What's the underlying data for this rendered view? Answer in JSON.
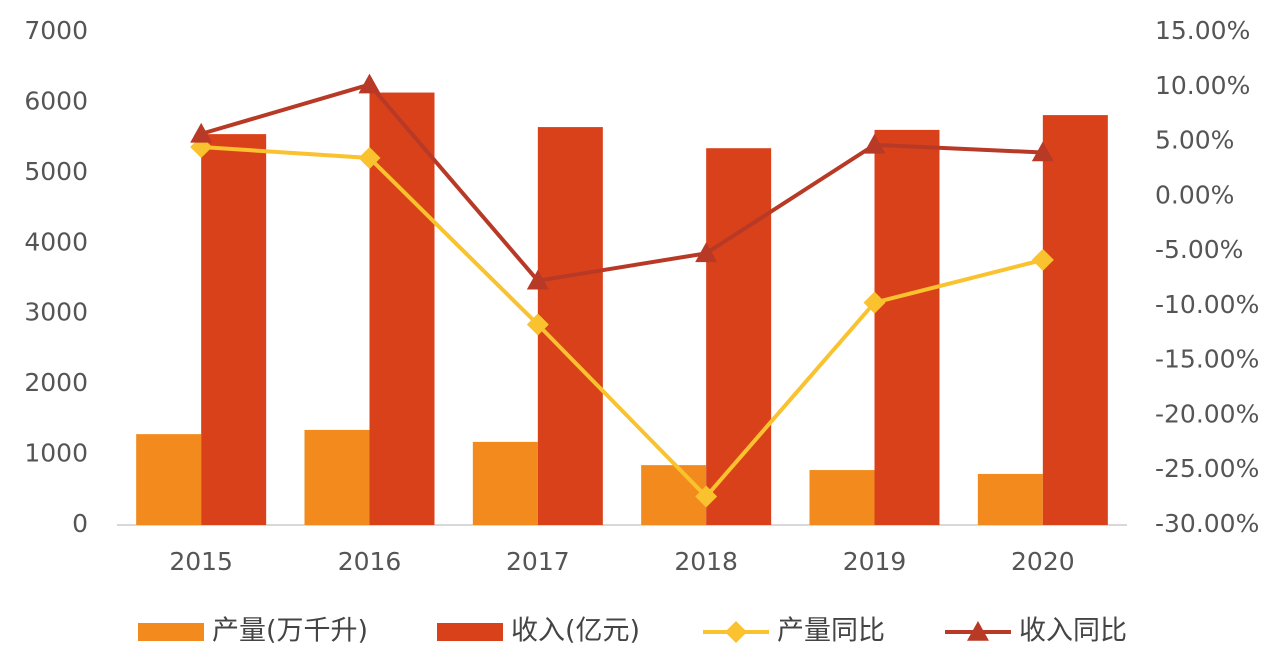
{
  "chart_data": {
    "type": "bar",
    "categories": [
      "2015",
      "2016",
      "2017",
      "2018",
      "2019",
      "2020"
    ],
    "series": [
      {
        "name": "产量(万千升)",
        "type": "bar",
        "color": "#f28a1e",
        "values": [
          1290,
          1350,
          1180,
          850,
          780,
          725
        ]
      },
      {
        "name": "收入(亿元)",
        "type": "bar",
        "color": "#d9411b",
        "values": [
          5550,
          6140,
          5650,
          5350,
          5610,
          5820
        ]
      },
      {
        "name": "产量同比",
        "type": "line",
        "marker": "diamond",
        "axis": "y2",
        "color": "#f9c22e",
        "values": [
          4.5,
          3.5,
          -11.7,
          -27.4,
          -9.7,
          -5.8
        ]
      },
      {
        "name": "收入同比",
        "type": "line",
        "marker": "triangle",
        "axis": "y2",
        "color": "#b83a26",
        "values": [
          5.7,
          10.2,
          -7.7,
          -5.2,
          4.7,
          4.0
        ]
      }
    ],
    "ylim": [
      0,
      7000
    ],
    "yticks": [
      0,
      1000,
      2000,
      3000,
      4000,
      5000,
      6000,
      7000
    ],
    "y2lim": [
      -30,
      15
    ],
    "y2ticks": [
      {
        "value": -30,
        "label": "-30.00%"
      },
      {
        "value": -25,
        "label": "-25.00%"
      },
      {
        "value": -20,
        "label": "-20.00%"
      },
      {
        "value": -15,
        "label": "-15.00%"
      },
      {
        "value": -10,
        "label": "-10.00%"
      },
      {
        "value": -5,
        "label": "-5.00%"
      },
      {
        "value": 0,
        "label": "0.00%"
      },
      {
        "value": 5,
        "label": "5.00%"
      },
      {
        "value": 10,
        "label": "10.00%"
      },
      {
        "value": 15,
        "label": "15.00%"
      }
    ],
    "grid": false
  }
}
